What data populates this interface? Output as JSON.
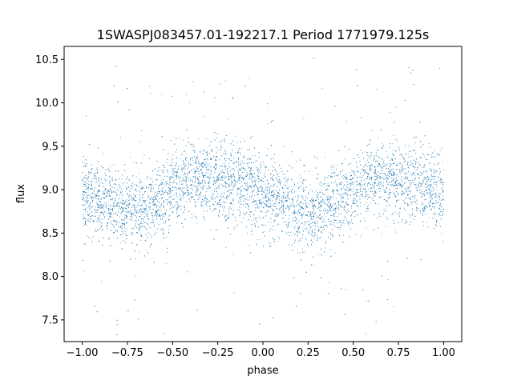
{
  "chart_data": {
    "type": "scatter",
    "title": "1SWASPJ083457.01-192217.1 Period 1771979.125s",
    "xlabel": "phase",
    "ylabel": "flux",
    "xlim": [
      -1.1,
      1.1
    ],
    "ylim": [
      7.25,
      10.65
    ],
    "x_ticks": [
      -1.0,
      -0.75,
      -0.5,
      -0.25,
      0.0,
      0.25,
      0.5,
      0.75,
      1.0
    ],
    "x_tick_labels": [
      "−1.00",
      "−0.75",
      "−0.50",
      "−0.25",
      "0.00",
      "0.25",
      "0.50",
      "0.75",
      "1.00"
    ],
    "y_ticks": [
      7.5,
      8.0,
      8.5,
      9.0,
      9.5,
      10.0,
      10.5
    ],
    "y_tick_labels": [
      "7.5",
      "8.0",
      "8.5",
      "9.0",
      "9.5",
      "10.0",
      "10.5"
    ],
    "grid": false,
    "series": [
      {
        "color": "#1f77b4",
        "marker_size": 0.5,
        "phase_range": [
          -1.0,
          1.0
        ],
        "mean_curve": {
          "x": [
            -1.0,
            -0.9,
            -0.8,
            -0.7,
            -0.6,
            -0.5,
            -0.4,
            -0.3,
            -0.2,
            -0.1,
            0.0,
            0.1,
            0.2,
            0.3,
            0.4,
            0.5,
            0.6,
            0.7,
            0.8,
            0.9,
            1.0
          ],
          "y": [
            8.95,
            8.88,
            8.78,
            8.78,
            8.85,
            8.98,
            9.12,
            9.12,
            9.08,
            9.05,
            8.95,
            8.85,
            8.72,
            8.75,
            8.85,
            9.0,
            9.12,
            9.12,
            9.08,
            9.02,
            8.95
          ]
        },
        "scatter_std": 0.22
      }
    ]
  }
}
